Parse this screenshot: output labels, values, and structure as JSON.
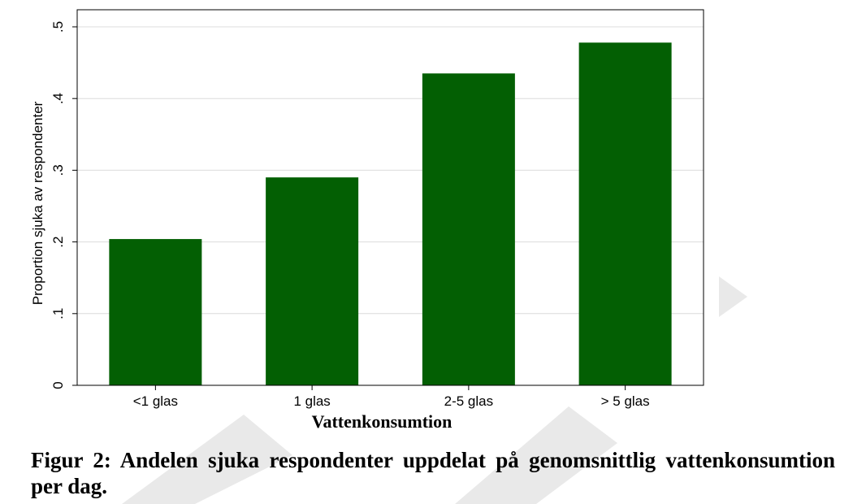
{
  "chart_data": {
    "type": "bar",
    "categories": [
      "<1 glas",
      "1 glas",
      "2-5 glas",
      "> 5 glas"
    ],
    "values": [
      0.204,
      0.29,
      0.435,
      0.478
    ],
    "xlabel": "Vattenkonsumtion",
    "ylabel": "Proportion sjuka av respondenter",
    "ylim": [
      0,
      0.5
    ],
    "yticks": [
      0,
      0.1,
      0.2,
      0.3,
      0.4,
      0.5
    ],
    "ytick_labels": [
      "0",
      ".1",
      ".2",
      ".3",
      ".4",
      ".5"
    ],
    "grid": true,
    "bar_color": "#035f03"
  },
  "caption": "Figur 2: Andelen sjuka respondenter uppdelat på genomsnittlig vattenkonsumtion per dag."
}
